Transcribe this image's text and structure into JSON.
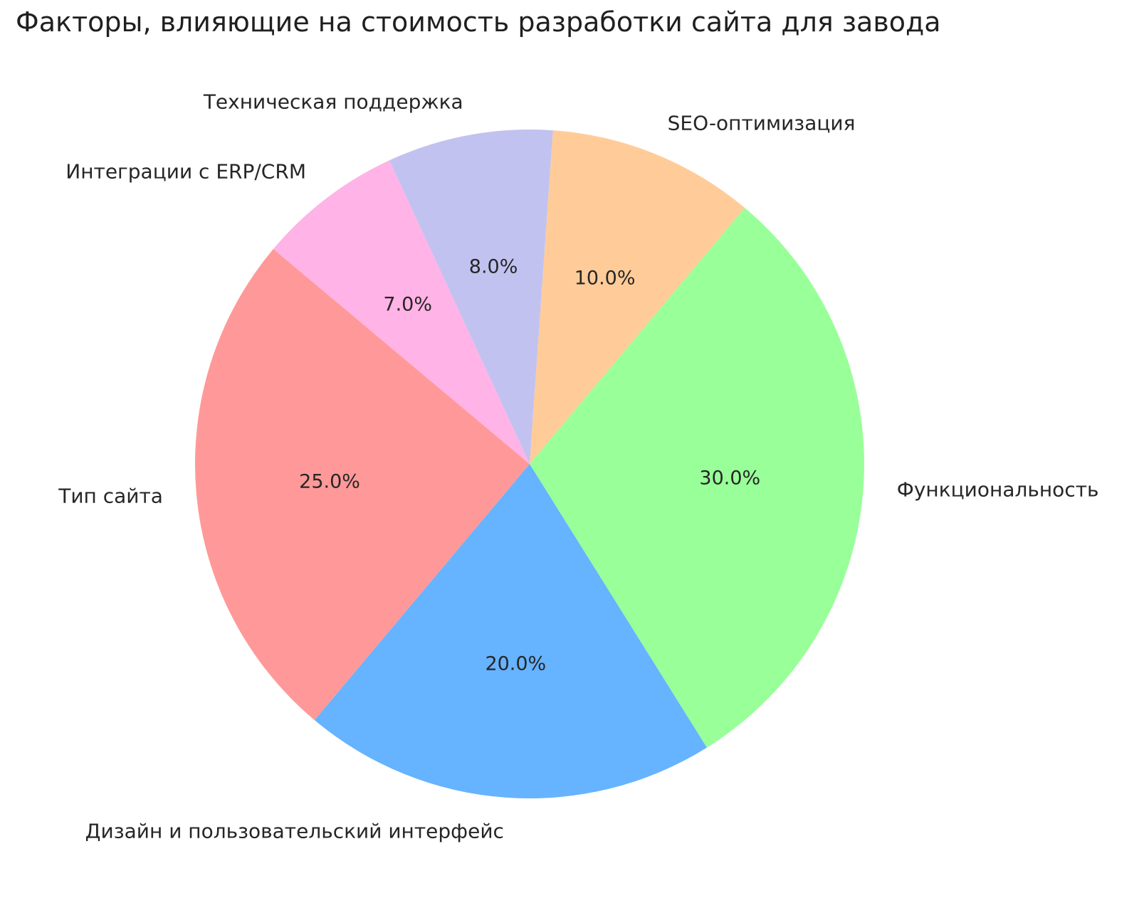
{
  "title": "Факторы, влияющие на стоимость разработки сайта для завода",
  "chart_data": {
    "type": "pie",
    "title": "Факторы, влияющие на стоимость разработки сайта для завода",
    "start_angle": 140,
    "direction": "counterclockwise",
    "labels_position": "outside",
    "percent_labels_position": "inside",
    "background": "#ffffff",
    "text_color": "#262626",
    "slices": [
      {
        "label": "Тип сайта",
        "value": 25.0,
        "pct_label": "25.0%",
        "color": "#ff9999"
      },
      {
        "label": "Дизайн и пользовательский интерфейс",
        "value": 20.0,
        "pct_label": "20.0%",
        "color": "#66b3ff"
      },
      {
        "label": "Функциональность",
        "value": 30.0,
        "pct_label": "30.0%",
        "color": "#99ff99"
      },
      {
        "label": "SEO-оптимизация",
        "value": 10.0,
        "pct_label": "10.0%",
        "color": "#ffcc99"
      },
      {
        "label": "Техническая поддержка",
        "value": 8.0,
        "pct_label": "8.0%",
        "color": "#c2c2f0"
      },
      {
        "label": "Интеграции с ERP/CRM",
        "value": 7.0,
        "pct_label": "7.0%",
        "color": "#ffb3e6"
      }
    ]
  }
}
